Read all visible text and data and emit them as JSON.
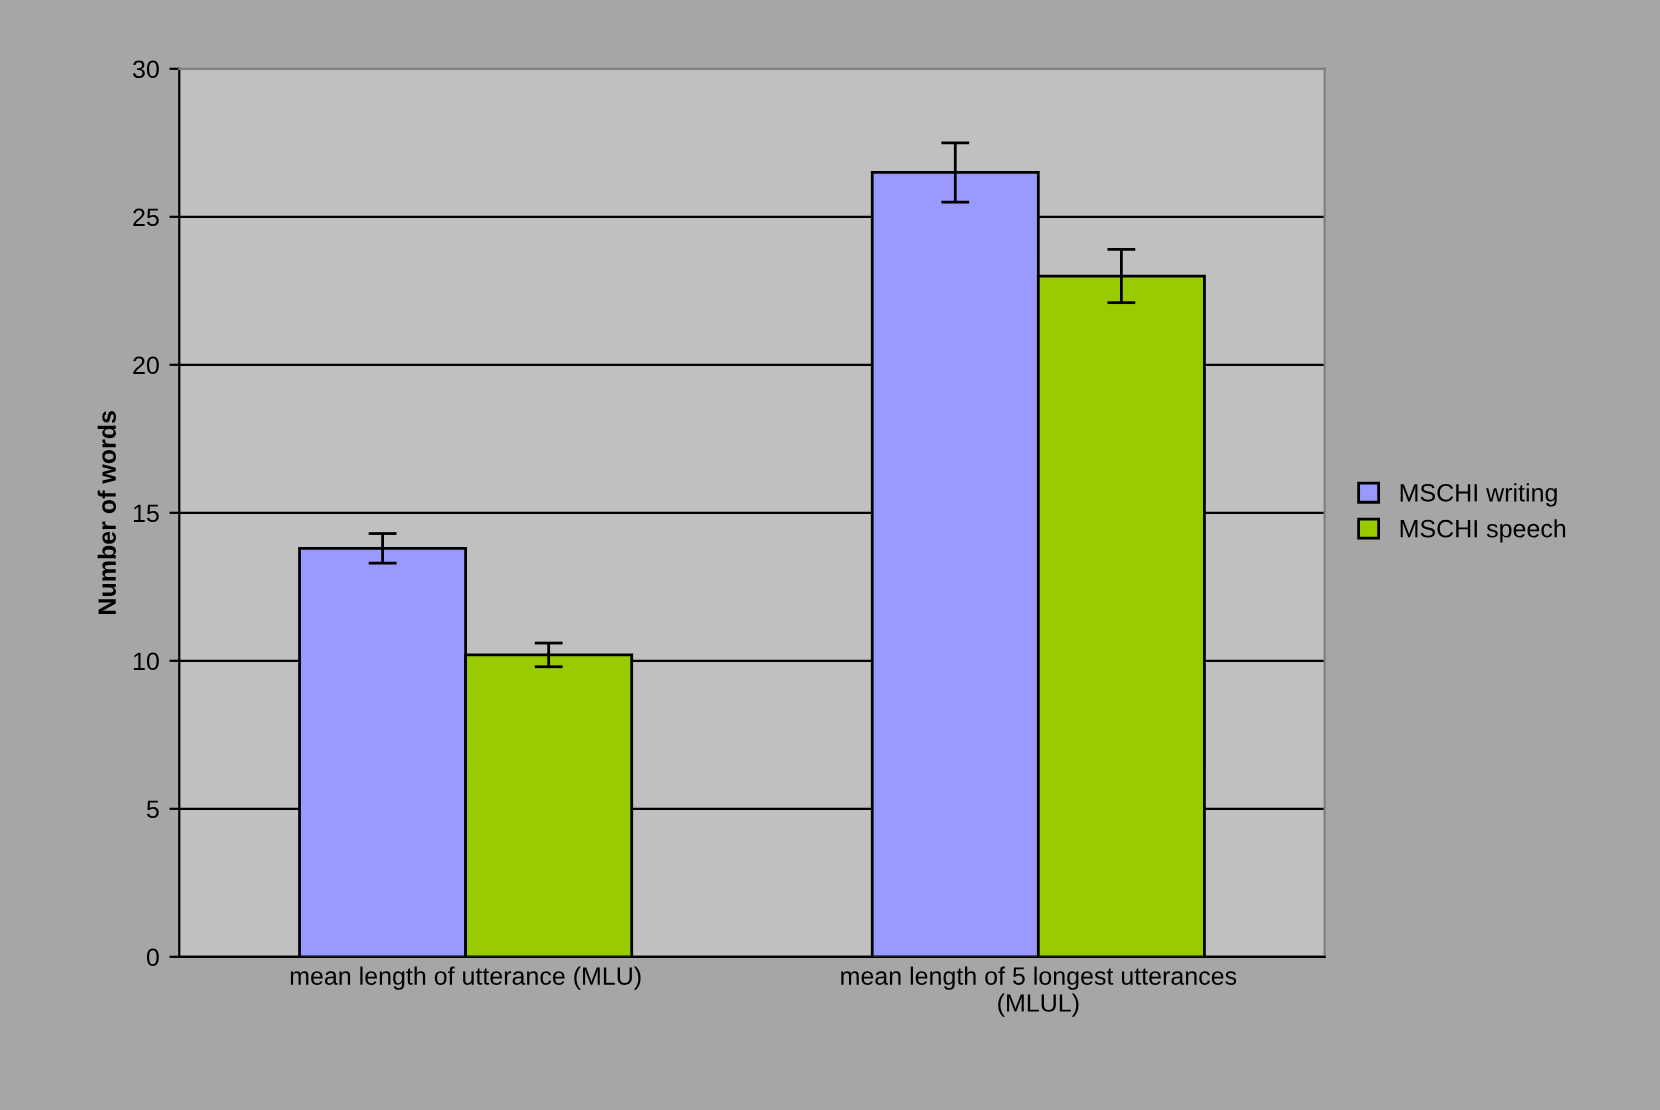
{
  "chart_data": {
    "type": "bar",
    "ylabel": "Number of words",
    "categories": [
      "mean length of utterance (MLU)",
      "mean length of 5 longest utterances\n(MLUL)"
    ],
    "series": [
      {
        "name": "MSCHI writing",
        "color": "#9999ff",
        "values": [
          13.8,
          26.5
        ],
        "errors": [
          0.5,
          1.0
        ]
      },
      {
        "name": "MSCHI speech",
        "color": "#99cc00",
        "values": [
          10.2,
          23.0
        ],
        "errors": [
          0.4,
          0.9
        ]
      }
    ],
    "ylim": [
      0,
      30
    ],
    "yticks": [
      0,
      5,
      10,
      15,
      20,
      25,
      30
    ],
    "grid": "y",
    "legend": "right"
  }
}
